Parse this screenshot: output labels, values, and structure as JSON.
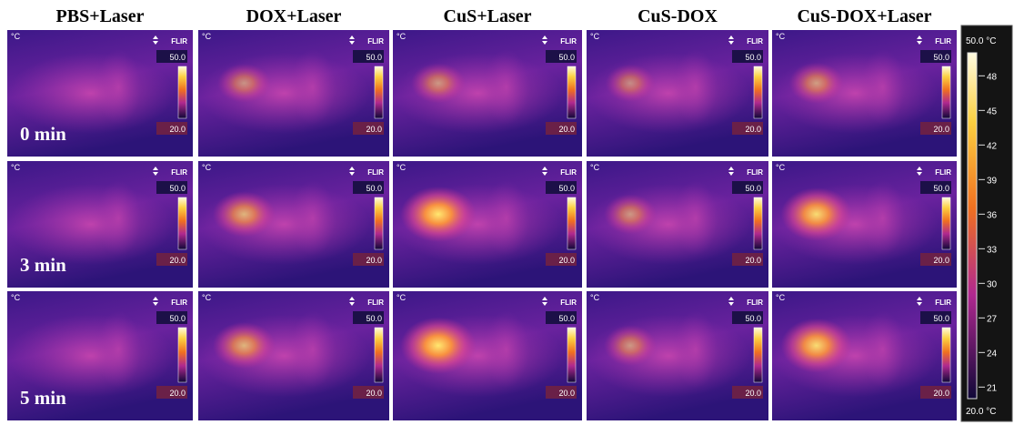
{
  "header": {
    "columns": [
      "PBS+Laser",
      "DOX+Laser",
      "CuS+Laser",
      "CuS-DOX",
      "CuS-DOX+Laser"
    ]
  },
  "rows": [
    "0 min",
    "3 min",
    "5 min"
  ],
  "tile": {
    "unit": "°C",
    "brand": "FLIR",
    "max": "50.0",
    "min": "20.0"
  },
  "scale_bar": {
    "max_label": "50.0 °C",
    "min_label": "20.0 °C",
    "range": [
      20,
      50
    ],
    "ticks": [
      48,
      45,
      42,
      39,
      36,
      33,
      30,
      27,
      24,
      21
    ]
  }
}
